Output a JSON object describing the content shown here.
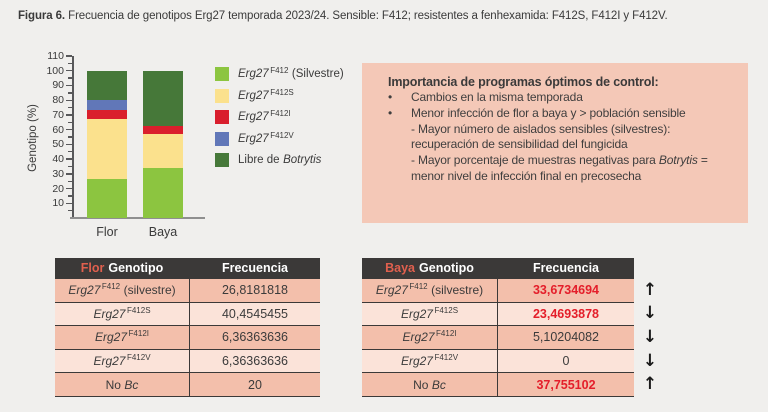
{
  "page": {
    "figure_label": "Figura 6.",
    "figure_caption": "Frecuencia de genotipos Erg27 temporada 2023/24. Sensible: F412; resistentes a fenhexamida: F412S, F412I y F412V."
  },
  "chart_data": {
    "type": "bar",
    "subtype": "stacked",
    "categories": [
      "Flor",
      "Baya"
    ],
    "series": [
      {
        "name": "Erg27 F412 (Silvestre)",
        "color": "#8cc540",
        "values": [
          26.8181818,
          33.6734694
        ]
      },
      {
        "name": "Erg27 F412S",
        "color": "#fbe18d",
        "values": [
          40.4545455,
          23.4693878
        ]
      },
      {
        "name": "Erg27 F412I",
        "color": "#da1f2c",
        "values": [
          6.36363636,
          5.10204082
        ]
      },
      {
        "name": "Erg27 F412V",
        "color": "#6177b8",
        "values": [
          6.36363636,
          0
        ]
      },
      {
        "name": "Libre de Botrytis",
        "color": "#467839",
        "values": [
          20,
          37.755102
        ]
      }
    ],
    "xlabel": "",
    "ylabel": "Genotipo (%)",
    "ylim": [
      0,
      110
    ],
    "ytick_step": 10,
    "yminor_step": 5,
    "grid": false,
    "legend_position": "right"
  },
  "legend": {
    "items": [
      {
        "color": "#8cc540",
        "segments": [
          {
            "t": "Erg27",
            "style": "italic"
          },
          {
            "t": "F412",
            "style": "sup"
          },
          {
            "t": "(Silvestre)"
          }
        ]
      },
      {
        "color": "#fbe18d",
        "segments": [
          {
            "t": "Erg27",
            "style": "italic"
          },
          {
            "t": "F412S",
            "style": "sup"
          }
        ]
      },
      {
        "color": "#d91e2d",
        "segments": [
          {
            "t": "Erg27",
            "style": "italic"
          },
          {
            "t": "F412I",
            "style": "sup"
          }
        ]
      },
      {
        "color": "#6177b8",
        "segments": [
          {
            "t": "Erg27",
            "style": "italic"
          },
          {
            "t": "F412V",
            "style": "sup"
          }
        ]
      },
      {
        "color": "#467839",
        "segments": [
          {
            "t": "Libre de"
          },
          {
            "t": "Botrytis",
            "style": "italic"
          }
        ]
      }
    ]
  },
  "info_box": {
    "title": "Importancia de programas óptimos de control:",
    "bullets": [
      {
        "segments": [
          {
            "t": "Cambios en la misma temporada"
          }
        ],
        "subs": []
      },
      {
        "segments": [
          {
            "t": "Menor infección de flor a baya y > población sensible"
          }
        ],
        "subs": [
          {
            "segments": [
              {
                "t": "- Mayor número de aislados sensibles (silvestres): recuperación de sensibilidad del fungicida"
              }
            ]
          },
          {
            "segments": [
              {
                "t": "- Mayor porcentaje de muestras negativas para "
              },
              {
                "t": "Botrytis",
                "style": "italic"
              },
              {
                "t": " = menor nivel de infección final en precosecha"
              }
            ]
          }
        ]
      }
    ]
  },
  "tables": {
    "flor": {
      "header_accent": "Flor",
      "header_rest": "Genotipo",
      "header_value": "Frecuencia",
      "rows": [
        {
          "label": [
            {
              "t": "Erg27",
              "style": "italic"
            },
            {
              "t": "F412",
              "style": "sup"
            },
            {
              "t": "(silvestre)"
            }
          ],
          "value": "26,8181818",
          "red": false
        },
        {
          "label": [
            {
              "t": "Erg27",
              "style": "italic"
            },
            {
              "t": "F412S",
              "style": "sup"
            }
          ],
          "value": "40,4545455",
          "red": false
        },
        {
          "label": [
            {
              "t": "Erg27",
              "style": "italic"
            },
            {
              "t": "F412I",
              "style": "sup"
            }
          ],
          "value": "6,36363636",
          "red": false
        },
        {
          "label": [
            {
              "t": "Erg27",
              "style": "italic"
            },
            {
              "t": "F412V",
              "style": "sup"
            }
          ],
          "value": "6,36363636",
          "red": false
        },
        {
          "label": [
            {
              "t": "No"
            },
            {
              "t": "Bc",
              "style": "italic"
            }
          ],
          "value": "20",
          "red": false
        }
      ]
    },
    "baya": {
      "header_accent": "Baya",
      "header_rest": "Genotipo",
      "header_value": "Frecuencia",
      "rows": [
        {
          "label": [
            {
              "t": "Erg27",
              "style": "italic"
            },
            {
              "t": "F412",
              "style": "sup"
            },
            {
              "t": "(silvestre)"
            }
          ],
          "value": "33,6734694",
          "red": true
        },
        {
          "label": [
            {
              "t": "Erg27",
              "style": "italic"
            },
            {
              "t": "F412S",
              "style": "sup"
            }
          ],
          "value": "23,4693878",
          "red": true
        },
        {
          "label": [
            {
              "t": "Erg27",
              "style": "italic"
            },
            {
              "t": "F412I",
              "style": "sup"
            }
          ],
          "value": "5,10204082",
          "red": false
        },
        {
          "label": [
            {
              "t": "Erg27",
              "style": "italic"
            },
            {
              "t": "F412V",
              "style": "sup"
            }
          ],
          "value": "0",
          "red": false
        },
        {
          "label": [
            {
              "t": "No"
            },
            {
              "t": "Bc",
              "style": "italic"
            }
          ],
          "value": "37,755102",
          "red": true
        }
      ],
      "trends": [
        "↑",
        "↓",
        "↓",
        "↓",
        "↑"
      ]
    }
  },
  "colors": {
    "page_bg": "#f0efed",
    "info_box_bg": "#f4c8b7",
    "table_header_bg": "#3b3938",
    "table_header_accent": "#e0604e",
    "row_dark": "#f3bfab",
    "row_light": "#fbe3d9",
    "value_red": "#e41e2a"
  }
}
